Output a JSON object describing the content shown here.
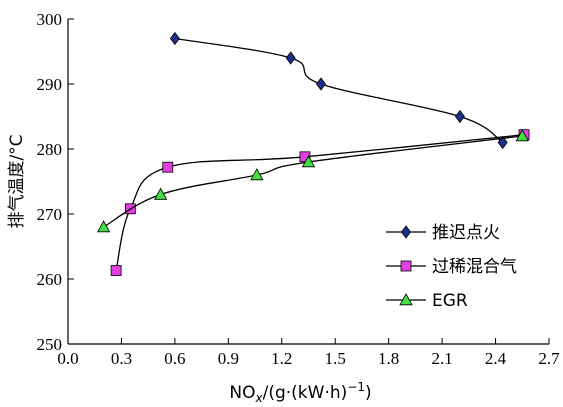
{
  "chart_data": {
    "type": "line",
    "xlabel": "NO",
    "xlabel_sub": "x",
    "xlabel_tail": "/(g·(kW·h)",
    "xlabel_sup": "−1",
    "xlabel_close": ")",
    "ylabel": "排气温度/°C",
    "xlim": [
      0.0,
      2.7
    ],
    "ylim": [
      250,
      300
    ],
    "xticks": [
      "0.0",
      "0.3",
      "0.6",
      "0.9",
      "1.2",
      "1.5",
      "1.8",
      "2.1",
      "2.4",
      "2.7"
    ],
    "yticks": [
      "250",
      "260",
      "270",
      "280",
      "290",
      "300"
    ],
    "legend_position": "right",
    "series": [
      {
        "name": "推迟点火",
        "marker": "diamond",
        "color": "#1f2f8a",
        "x": [
          0.6,
          1.25,
          1.42,
          2.2,
          2.44
        ],
        "y": [
          297,
          294,
          290,
          285,
          281
        ]
      },
      {
        "name": "过稀混合气",
        "marker": "square",
        "color": "#e040e0",
        "x": [
          0.27,
          0.35,
          0.56,
          1.33,
          2.56
        ],
        "y": [
          261.3,
          270.8,
          277.2,
          278.8,
          282.2
        ]
      },
      {
        "name": "EGR",
        "marker": "triangle",
        "color": "#44dd44",
        "x": [
          0.2,
          0.52,
          1.06,
          1.35,
          2.55
        ],
        "y": [
          268,
          273,
          276,
          278,
          282
        ]
      }
    ]
  }
}
